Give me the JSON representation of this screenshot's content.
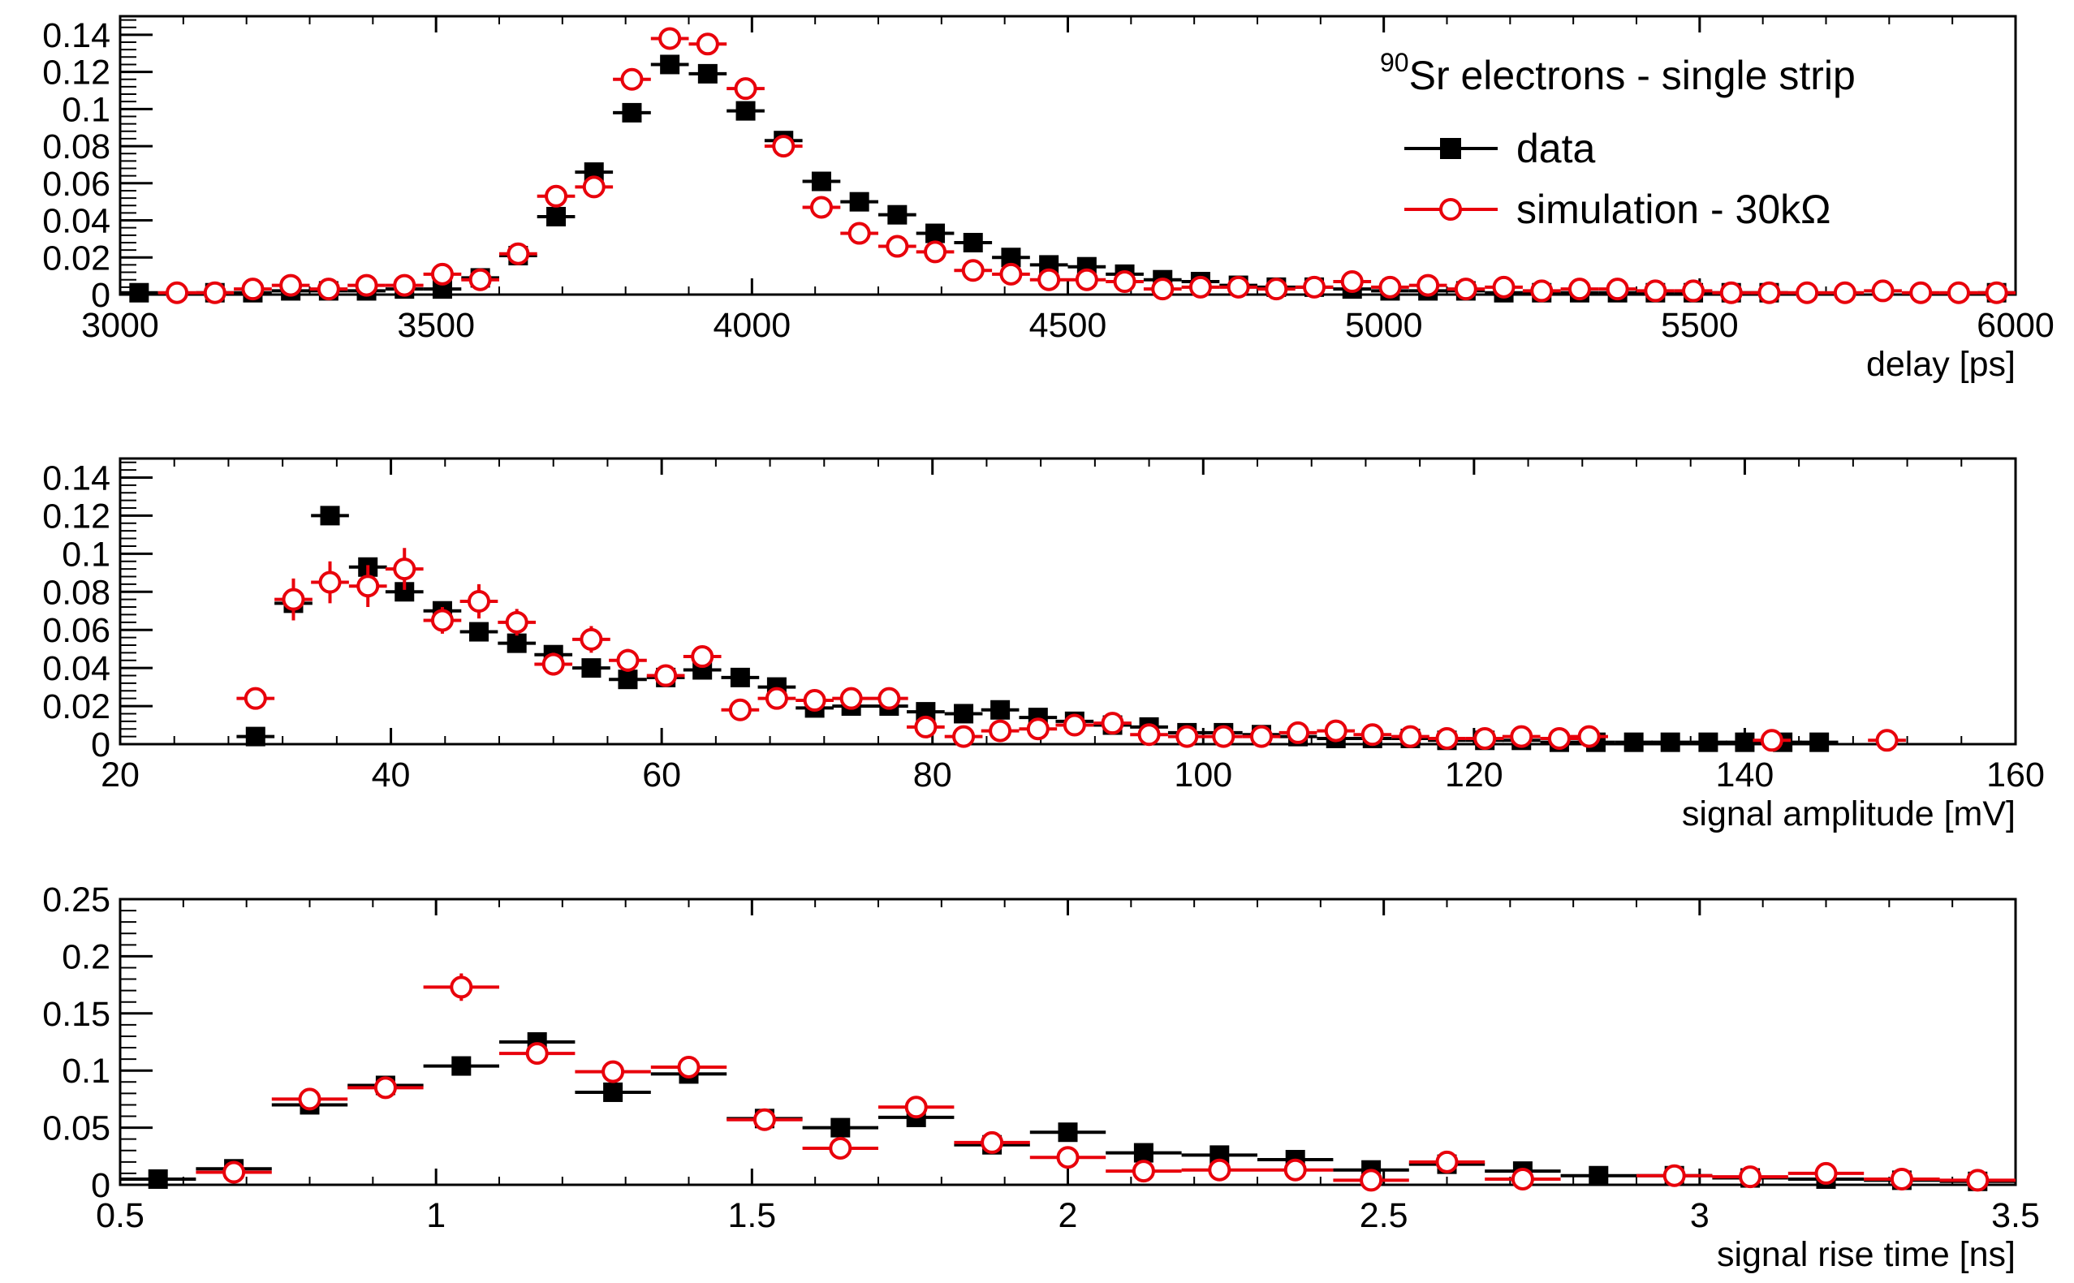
{
  "legend": {
    "title_sup": "90",
    "title_rest": "Sr electrons - single strip",
    "entries": [
      "data",
      "simulation - 30kΩ"
    ]
  },
  "colors": {
    "data": "#000000",
    "simulation": "#e8000b"
  },
  "chart_data": [
    {
      "type": "scatter",
      "xlabel": "delay [ps]",
      "xlim": [
        3000,
        6000
      ],
      "ylim": [
        0,
        0.15
      ],
      "x_ticks": [
        3000,
        3500,
        4000,
        4500,
        5000,
        5500,
        6000
      ],
      "x_tick_labels": [
        "3000",
        "3500",
        "4000",
        "4500",
        "5000",
        "5500",
        "6000"
      ],
      "y_ticks": [
        0,
        0.02,
        0.04,
        0.06,
        0.08,
        0.1,
        0.12,
        0.14
      ],
      "y_tick_labels": [
        "0",
        "0.02",
        "0.04",
        "0.06",
        "0.08",
        "0.1",
        "0.12",
        "0.14"
      ],
      "series": [
        {
          "name": "data",
          "x": [
            3030,
            3150,
            3210,
            3270,
            3330,
            3390,
            3450,
            3510,
            3570,
            3630,
            3690,
            3750,
            3810,
            3870,
            3930,
            3990,
            4050,
            4110,
            4170,
            4230,
            4290,
            4350,
            4410,
            4470,
            4530,
            4590,
            4650,
            4710,
            4770,
            4830,
            4890,
            4950,
            5010,
            5070,
            5130,
            5190,
            5250,
            5310,
            5370,
            5430,
            5490,
            5550,
            5610,
            5970
          ],
          "y": [
            0.001,
            0.001,
            0.001,
            0.002,
            0.002,
            0.002,
            0.003,
            0.003,
            0.009,
            0.021,
            0.042,
            0.066,
            0.098,
            0.124,
            0.119,
            0.099,
            0.083,
            0.061,
            0.05,
            0.043,
            0.033,
            0.028,
            0.02,
            0.016,
            0.015,
            0.011,
            0.008,
            0.007,
            0.005,
            0.004,
            0.004,
            0.003,
            0.002,
            0.002,
            0.002,
            0.001,
            0.001,
            0.001,
            0.001,
            0.001,
            0.001,
            0.001,
            0.001,
            0.001
          ],
          "xerr": 30,
          "yerr": [
            0,
            0,
            0,
            0,
            0,
            0,
            0,
            0,
            0.002,
            0.002,
            0.002,
            0.002,
            0.002,
            0.002,
            0.002,
            0.002,
            0.002,
            0.002,
            0.002,
            0.002,
            0.002,
            0.002,
            0.002,
            0,
            0,
            0,
            0,
            0,
            0,
            0,
            0,
            0,
            0,
            0,
            0,
            0,
            0,
            0,
            0,
            0,
            0,
            0,
            0,
            0
          ]
        },
        {
          "name": "simulation - 30kΩ",
          "x": [
            3090,
            3150,
            3210,
            3270,
            3330,
            3390,
            3450,
            3510,
            3570,
            3630,
            3690,
            3750,
            3810,
            3870,
            3930,
            3990,
            4050,
            4110,
            4170,
            4230,
            4290,
            4350,
            4410,
            4470,
            4530,
            4590,
            4650,
            4710,
            4770,
            4830,
            4890,
            4950,
            5010,
            5070,
            5130,
            5190,
            5250,
            5310,
            5370,
            5430,
            5490,
            5550,
            5610,
            5670,
            5730,
            5790,
            5850,
            5910,
            5970
          ],
          "y": [
            0.001,
            0.001,
            0.003,
            0.005,
            0.003,
            0.005,
            0.005,
            0.011,
            0.008,
            0.022,
            0.053,
            0.058,
            0.116,
            0.138,
            0.135,
            0.111,
            0.08,
            0.047,
            0.033,
            0.026,
            0.023,
            0.013,
            0.011,
            0.008,
            0.008,
            0.007,
            0.003,
            0.004,
            0.004,
            0.003,
            0.004,
            0.007,
            0.004,
            0.005,
            0.003,
            0.004,
            0.002,
            0.003,
            0.003,
            0.002,
            0.002,
            0.001,
            0.001,
            0.001,
            0.001,
            0.002,
            0.001,
            0.001,
            0.001
          ],
          "xerr": 30,
          "yerr": [
            0,
            0,
            0,
            0,
            0,
            0,
            0,
            0,
            0,
            0,
            0.003,
            0.003,
            0.004,
            0.004,
            0.004,
            0.004,
            0.003,
            0.003,
            0.002,
            0.002,
            0.002,
            0,
            0,
            0,
            0,
            0,
            0,
            0,
            0,
            0,
            0,
            0,
            0,
            0,
            0,
            0,
            0,
            0,
            0,
            0,
            0,
            0,
            0,
            0,
            0,
            0,
            0,
            0,
            0
          ]
        }
      ]
    },
    {
      "type": "scatter",
      "xlabel": "signal amplitude [mV]",
      "xlim": [
        20,
        160
      ],
      "ylim": [
        0,
        0.15
      ],
      "x_ticks": [
        20,
        40,
        60,
        80,
        100,
        120,
        140,
        160
      ],
      "x_tick_labels": [
        "20",
        "40",
        "60",
        "80",
        "100",
        "120",
        "140",
        "160"
      ],
      "y_ticks": [
        0,
        0.02,
        0.04,
        0.06,
        0.08,
        0.1,
        0.12,
        0.14
      ],
      "y_tick_labels": [
        "0",
        "0.02",
        "0.04",
        "0.06",
        "0.08",
        "0.1",
        "0.12",
        "0.14"
      ],
      "series": [
        {
          "name": "data",
          "x": [
            30,
            32.8,
            35.5,
            38.3,
            41,
            43.8,
            46.5,
            49.3,
            52,
            54.8,
            57.5,
            60.3,
            63,
            65.8,
            68.5,
            71.3,
            74,
            76.8,
            79.5,
            82.3,
            85,
            87.8,
            90.5,
            93.3,
            96,
            98.8,
            101.5,
            104.3,
            107,
            109.8,
            112.5,
            115.3,
            118,
            120.8,
            123.5,
            126.3,
            129,
            131.8,
            134.5,
            137.3,
            140,
            142.8,
            145.5
          ],
          "y": [
            0.004,
            0.074,
            0.12,
            0.093,
            0.08,
            0.07,
            0.059,
            0.053,
            0.047,
            0.04,
            0.034,
            0.035,
            0.039,
            0.035,
            0.03,
            0.019,
            0.02,
            0.02,
            0.017,
            0.016,
            0.018,
            0.014,
            0.012,
            0.01,
            0.009,
            0.006,
            0.006,
            0.005,
            0.004,
            0.003,
            0.003,
            0.003,
            0.002,
            0.002,
            0.002,
            0.001,
            0.001,
            0.001,
            0.001,
            0.001,
            0.001,
            0.001,
            0.001
          ],
          "xerr": 1.4,
          "yerr": [
            0.001,
            0.004,
            0.004,
            0.004,
            0.003,
            0.003,
            0.003,
            0.003,
            0.002,
            0.002,
            0.002,
            0.002,
            0.002,
            0.002,
            0.002,
            0.002,
            0.002,
            0.002,
            0.002,
            0,
            0,
            0,
            0,
            0,
            0,
            0,
            0,
            0,
            0,
            0,
            0,
            0,
            0,
            0,
            0,
            0,
            0,
            0,
            0,
            0,
            0,
            0,
            0
          ]
        },
        {
          "name": "simulation - 30kΩ",
          "x": [
            30,
            32.8,
            35.5,
            38.3,
            41,
            43.8,
            46.5,
            49.3,
            52,
            54.8,
            57.5,
            60.3,
            63,
            65.8,
            68.5,
            71.3,
            74,
            76.8,
            79.5,
            82.3,
            85,
            87.8,
            90.5,
            93.3,
            96,
            98.8,
            101.5,
            104.3,
            107,
            109.8,
            112.5,
            115.3,
            118,
            120.8,
            123.5,
            126.3,
            128.5,
            142,
            150.5
          ],
          "y": [
            0.024,
            0.076,
            0.085,
            0.083,
            0.092,
            0.065,
            0.075,
            0.064,
            0.042,
            0.055,
            0.044,
            0.036,
            0.046,
            0.018,
            0.024,
            0.023,
            0.024,
            0.024,
            0.009,
            0.004,
            0.007,
            0.008,
            0.01,
            0.011,
            0.005,
            0.004,
            0.004,
            0.004,
            0.006,
            0.007,
            0.005,
            0.004,
            0.003,
            0.003,
            0.004,
            0.003,
            0.004,
            0.002,
            0.002
          ],
          "xerr": 1.4,
          "yerr": [
            0.003,
            0.011,
            0.011,
            0.011,
            0.011,
            0.007,
            0.009,
            0.007,
            0.006,
            0.007,
            0.006,
            0.005,
            0.005,
            0.003,
            0.004,
            0.004,
            0.004,
            0.004,
            0.003,
            0.002,
            0.002,
            0.002,
            0.002,
            0.002,
            0.002,
            0.002,
            0,
            0,
            0,
            0,
            0,
            0,
            0,
            0,
            0,
            0,
            0,
            0,
            0
          ]
        }
      ]
    },
    {
      "type": "scatter",
      "xlabel": "signal rise time [ns]",
      "xlim": [
        0.5,
        3.5
      ],
      "ylim": [
        0,
        0.25
      ],
      "x_ticks": [
        0.5,
        1,
        1.5,
        2,
        2.5,
        3,
        3.5
      ],
      "x_tick_labels": [
        "0.5",
        "1",
        "1.5",
        "2",
        "2.5",
        "3",
        "3.5"
      ],
      "y_ticks": [
        0,
        0.05,
        0.1,
        0.15,
        0.2,
        0.25
      ],
      "y_tick_labels": [
        "0",
        "0.05",
        "0.1",
        "0.15",
        "0.2",
        "0.25"
      ],
      "series": [
        {
          "name": "data",
          "x": [
            0.56,
            0.68,
            0.8,
            0.92,
            1.04,
            1.16,
            1.28,
            1.4,
            1.52,
            1.64,
            1.76,
            1.88,
            2.0,
            2.12,
            2.24,
            2.36,
            2.48,
            2.6,
            2.72,
            2.84,
            2.96,
            3.08,
            3.2,
            3.32,
            3.44
          ],
          "y": [
            0.005,
            0.014,
            0.07,
            0.087,
            0.104,
            0.125,
            0.081,
            0.097,
            0.058,
            0.05,
            0.059,
            0.035,
            0.046,
            0.028,
            0.026,
            0.022,
            0.013,
            0.018,
            0.012,
            0.008,
            0.008,
            0.006,
            0.005,
            0.004,
            0.003
          ],
          "xerr": 0.06,
          "yerr": [
            0.002,
            0.003,
            0.004,
            0.004,
            0.004,
            0.005,
            0.004,
            0.004,
            0.003,
            0.003,
            0.003,
            0.003,
            0.003,
            0.002,
            0.002,
            0.002,
            0.002,
            0.002,
            0.002,
            0.001,
            0.001,
            0.001,
            0.001,
            0.001,
            0.001
          ]
        },
        {
          "name": "simulation - 30kΩ",
          "x": [
            0.68,
            0.8,
            0.92,
            1.04,
            1.16,
            1.28,
            1.4,
            1.52,
            1.64,
            1.76,
            1.88,
            2.0,
            2.12,
            2.24,
            2.36,
            2.48,
            2.6,
            2.72,
            2.96,
            3.08,
            3.2,
            3.32,
            3.44
          ],
          "y": [
            0.011,
            0.075,
            0.085,
            0.173,
            0.115,
            0.099,
            0.103,
            0.057,
            0.032,
            0.068,
            0.037,
            0.024,
            0.012,
            0.013,
            0.013,
            0.004,
            0.02,
            0.005,
            0.008,
            0.007,
            0.01,
            0.005,
            0.004
          ],
          "xerr": 0.06,
          "yerr": [
            0.003,
            0.008,
            0.008,
            0.012,
            0.009,
            0.008,
            0.008,
            0.006,
            0.005,
            0.007,
            0.005,
            0.004,
            0.003,
            0.003,
            0.003,
            0.002,
            0.003,
            0.002,
            0.002,
            0.002,
            0.002,
            0.002,
            0.002
          ]
        }
      ]
    }
  ]
}
